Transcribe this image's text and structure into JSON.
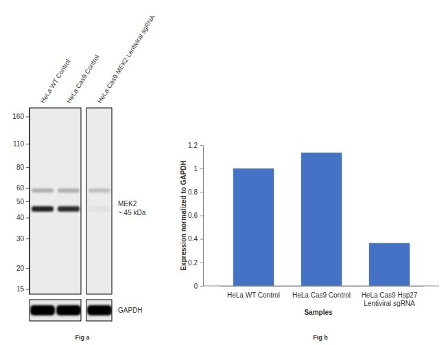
{
  "chart_data": {
    "type": "bar",
    "categories": [
      "HeLa WT Control",
      "HeLa Cas9 Control",
      "HeLa Cas9 Hsp27 Lentiviral sgRNA"
    ],
    "values": [
      1,
      1.135,
      0.365
    ],
    "color": "#4472c4",
    "ylim": [
      0,
      1.2
    ],
    "yticks": [
      0,
      0.2,
      0.4,
      0.6,
      0.8,
      1,
      1.2
    ],
    "x_label": "Samples",
    "y_label": "Expression normalized to GAPDH",
    "caption": "Fig b",
    "grid": false
  },
  "blot": {
    "caption": "Fig a",
    "lanes": [
      "HeLa WT Control",
      "HeLa Cas9 Control",
      "HeLa Cas9 MEK2 Lentiviral sgRNA"
    ],
    "ladder": [
      160,
      110,
      80,
      60,
      50,
      40,
      30,
      20,
      15
    ],
    "ylim": [
      14,
      180
    ],
    "target": {
      "label": "MEK2",
      "size_label": "~ 45 kDa",
      "kda": 45,
      "intensity": [
        0.9,
        0.85,
        0.04
      ]
    },
    "other_bands": [
      {
        "kda": 58,
        "intensity": [
          0.3,
          0.3,
          0.22
        ]
      }
    ],
    "loading_control": {
      "label": "GAPDH",
      "intensity": [
        1,
        1,
        1
      ]
    }
  }
}
